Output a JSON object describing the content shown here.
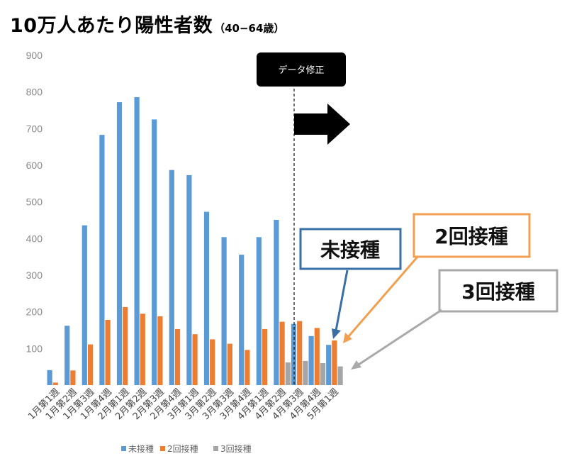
{
  "header": {
    "title": "10万人あたり陽性者数",
    "subtitle": "（40−64歳）"
  },
  "annotation": {
    "note_label": "データ修正"
  },
  "callouts": {
    "unvaccinated": "未接種",
    "dose2": "2回接種",
    "dose3": "3回接種"
  },
  "colors": {
    "unvaccinated": "#5B9BD5",
    "dose2": "#ED7D31",
    "dose3": "#A5A5A5",
    "callout_blue_border": "#3A6FA5",
    "callout_orange_border": "#F0A050",
    "callout_gray_border": "#A9A9A9",
    "note_bg": "#000000"
  },
  "chart_data": {
    "type": "bar",
    "title": "10万人あたり陽性者数（40−64歳）",
    "categories": [
      "1月第1週",
      "1月第2週",
      "1月第3週",
      "1月第4週",
      "2月第1週",
      "2月第2週",
      "2月第3週",
      "2月第4週",
      "3月第1週",
      "3月第2週",
      "3月第3週",
      "3月第4週",
      "4月第1週",
      "4月第2週",
      "4月第3週",
      "4月第4週",
      "5月第1週"
    ],
    "series": [
      {
        "name": "未接種",
        "color": "#5B9BD5",
        "values": [
          41,
          162,
          436,
          683,
          772,
          786,
          725,
          587,
          573,
          473,
          404,
          356,
          404,
          451,
          167,
          134,
          110
        ]
      },
      {
        "name": "2回接種",
        "color": "#ED7D31",
        "values": [
          7,
          40,
          111,
          178,
          213,
          195,
          188,
          153,
          139,
          125,
          113,
          96,
          153,
          173,
          175,
          156,
          122
        ]
      },
      {
        "name": "3回接種",
        "color": "#A5A5A5",
        "values": [
          0,
          0,
          0,
          0,
          0,
          0,
          0,
          0,
          0,
          0,
          0,
          0,
          0,
          62,
          66,
          60,
          51
        ]
      }
    ],
    "ylim": [
      0,
      900
    ],
    "yticks": [
      "900",
      "800",
      "700",
      "600",
      "500",
      "400",
      "300",
      "200",
      "100",
      ""
    ],
    "ytick_values": [
      900,
      800,
      700,
      600,
      500,
      400,
      300,
      200,
      100,
      0
    ],
    "grid": false,
    "legend": "bottom",
    "xlabel": "",
    "ylabel": ""
  }
}
